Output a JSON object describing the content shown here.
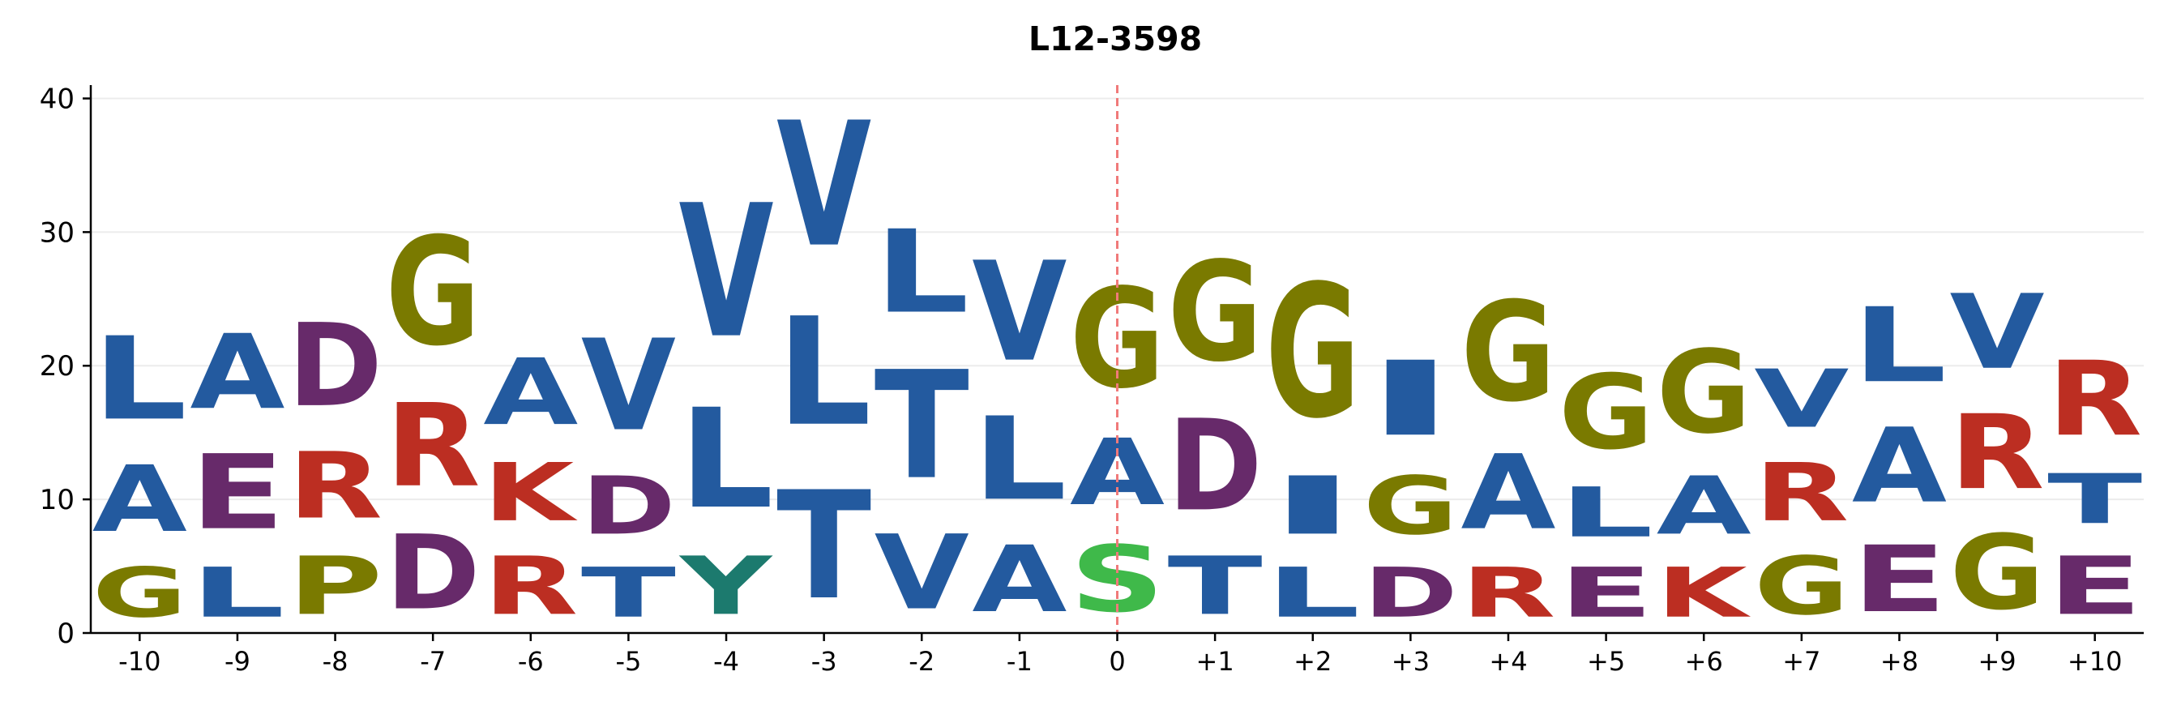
{
  "chart_data": {
    "type": "sequence-logo",
    "title": "L12-3598",
    "xlabel": "",
    "ylabel": "",
    "ylim": [
      0,
      41
    ],
    "yticks": [
      0,
      10,
      20,
      30,
      40
    ],
    "grid": "horizontal",
    "center_marker": {
      "position": "0",
      "style": "dashed",
      "color": "#f07a7a"
    },
    "colors": {
      "hydrophobic": "#235a9f",
      "acidic": "#672a6a",
      "basic": "#bc2e22",
      "special": "#7a7a00",
      "polar": "#3fb94a",
      "aromatic": "#1c7a6e"
    },
    "letter_colors": {
      "A": "#235a9f",
      "V": "#235a9f",
      "L": "#235a9f",
      "I": "#235a9f",
      "T": "#235a9f",
      "D": "#672a6a",
      "E": "#672a6a",
      "R": "#bc2e22",
      "K": "#bc2e22",
      "G": "#7a7a00",
      "P": "#7a7a00",
      "S": "#3fb94a",
      "Y": "#1c7a6e"
    },
    "positions": [
      {
        "label": "-10",
        "stack": [
          {
            "letter": "G",
            "value": 6
          },
          {
            "letter": "A",
            "value": 8
          },
          {
            "letter": "L",
            "value": 10
          }
        ]
      },
      {
        "label": "-9",
        "stack": [
          {
            "letter": "L",
            "value": 6
          },
          {
            "letter": "E",
            "value": 9
          },
          {
            "letter": "A",
            "value": 9
          }
        ]
      },
      {
        "label": "-8",
        "stack": [
          {
            "letter": "P",
            "value": 7
          },
          {
            "letter": "R",
            "value": 8
          },
          {
            "letter": "D",
            "value": 10
          }
        ]
      },
      {
        "label": "-7",
        "stack": [
          {
            "letter": "D",
            "value": 9
          },
          {
            "letter": "R",
            "value": 10
          },
          {
            "letter": "G",
            "value": 13
          }
        ]
      },
      {
        "label": "-6",
        "stack": [
          {
            "letter": "R",
            "value": 7
          },
          {
            "letter": "K",
            "value": 7
          },
          {
            "letter": "A",
            "value": 8
          }
        ]
      },
      {
        "label": "-5",
        "stack": [
          {
            "letter": "T",
            "value": 6
          },
          {
            "letter": "D",
            "value": 7
          },
          {
            "letter": "V",
            "value": 11
          }
        ]
      },
      {
        "label": "-4",
        "stack": [
          {
            "letter": "Y",
            "value": 7
          },
          {
            "letter": "L",
            "value": 12
          },
          {
            "letter": "V",
            "value": 16
          }
        ]
      },
      {
        "label": "-3",
        "stack": [
          {
            "letter": "T",
            "value": 13
          },
          {
            "letter": "L",
            "value": 13
          },
          {
            "letter": "V",
            "value": 15
          }
        ]
      },
      {
        "label": "-2",
        "stack": [
          {
            "letter": "V",
            "value": 9
          },
          {
            "letter": "T",
            "value": 13
          },
          {
            "letter": "L",
            "value": 10
          }
        ]
      },
      {
        "label": "-1",
        "stack": [
          {
            "letter": "A",
            "value": 8
          },
          {
            "letter": "L",
            "value": 10
          },
          {
            "letter": "V",
            "value": 12
          }
        ]
      },
      {
        "label": "0",
        "stack": [
          {
            "letter": "S",
            "value": 8
          },
          {
            "letter": "A",
            "value": 8
          },
          {
            "letter": "G",
            "value": 12
          }
        ]
      },
      {
        "label": "+1",
        "stack": [
          {
            "letter": "T",
            "value": 7
          },
          {
            "letter": "D",
            "value": 11
          },
          {
            "letter": "G",
            "value": 12
          }
        ]
      },
      {
        "label": "+2",
        "stack": [
          {
            "letter": "L",
            "value": 6
          },
          {
            "letter": "I",
            "value": 7
          },
          {
            "letter": "G",
            "value": 16
          }
        ]
      },
      {
        "label": "+3",
        "stack": [
          {
            "letter": "D",
            "value": 6
          },
          {
            "letter": "G",
            "value": 7
          },
          {
            "letter": "I",
            "value": 9
          }
        ]
      },
      {
        "label": "+4",
        "stack": [
          {
            "letter": "R",
            "value": 6
          },
          {
            "letter": "A",
            "value": 9
          },
          {
            "letter": "G",
            "value": 12
          }
        ]
      },
      {
        "label": "+5",
        "stack": [
          {
            "letter": "E",
            "value": 6
          },
          {
            "letter": "L",
            "value": 6
          },
          {
            "letter": "G",
            "value": 9
          }
        ]
      },
      {
        "label": "+6",
        "stack": [
          {
            "letter": "K",
            "value": 6
          },
          {
            "letter": "A",
            "value": 7
          },
          {
            "letter": "G",
            "value": 10
          }
        ]
      },
      {
        "label": "+7",
        "stack": [
          {
            "letter": "G",
            "value": 7
          },
          {
            "letter": "R",
            "value": 7
          },
          {
            "letter": "V",
            "value": 7
          }
        ]
      },
      {
        "label": "+8",
        "stack": [
          {
            "letter": "E",
            "value": 8
          },
          {
            "letter": "A",
            "value": 9
          },
          {
            "letter": "L",
            "value": 9
          }
        ]
      },
      {
        "label": "+9",
        "stack": [
          {
            "letter": "G",
            "value": 9
          },
          {
            "letter": "R",
            "value": 9
          },
          {
            "letter": "V",
            "value": 9
          }
        ]
      },
      {
        "label": "+10",
        "stack": [
          {
            "letter": "E",
            "value": 7
          },
          {
            "letter": "T",
            "value": 6
          },
          {
            "letter": "R",
            "value": 9
          }
        ]
      }
    ]
  }
}
